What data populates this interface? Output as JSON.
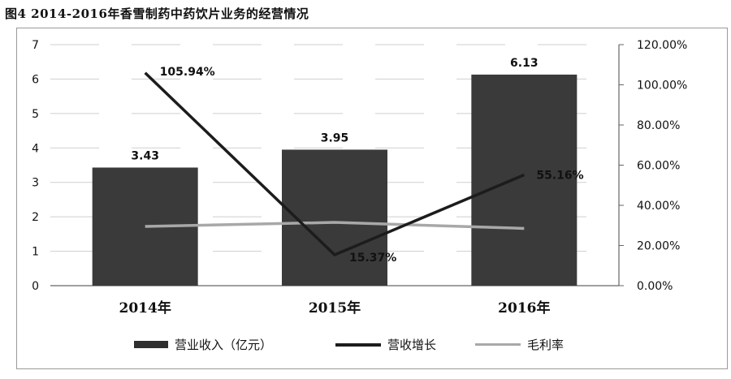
{
  "figure_title": "图4  2014-2016年香雪制药中药饮片业务的经营情况",
  "colors": {
    "bar": "#3a3a3a",
    "growth_line": "#1c1c1c",
    "margin_line": "#a8a8a8",
    "axis": "#666666"
  },
  "chart_data": {
    "type": "bar",
    "categories": [
      "2014年",
      "2015年",
      "2016年"
    ],
    "y_left": {
      "ticks": [
        "0",
        "1",
        "2",
        "3",
        "4",
        "5",
        "6",
        "7"
      ],
      "ylim": [
        0,
        7
      ]
    },
    "y_right": {
      "ticks": [
        "0.00%",
        "20.00%",
        "40.00%",
        "60.00%",
        "80.00%",
        "100.00%",
        "120.00%"
      ],
      "ylim": [
        0,
        120
      ]
    },
    "series": [
      {
        "name": "营业收入（亿元）",
        "type": "bar",
        "axis": "left",
        "values": [
          3.43,
          3.95,
          6.13
        ],
        "labels": [
          "3.43",
          "3.95",
          "6.13"
        ]
      },
      {
        "name": "营收增长",
        "type": "line",
        "axis": "right",
        "values": [
          105.94,
          15.37,
          55.16
        ],
        "labels": [
          "105.94%",
          "15.37%",
          "55.16%"
        ]
      },
      {
        "name": "毛利率",
        "type": "line",
        "axis": "right",
        "values": [
          29.5,
          31.5,
          28.5
        ]
      }
    ],
    "grid": true,
    "legend_position": "bottom"
  }
}
